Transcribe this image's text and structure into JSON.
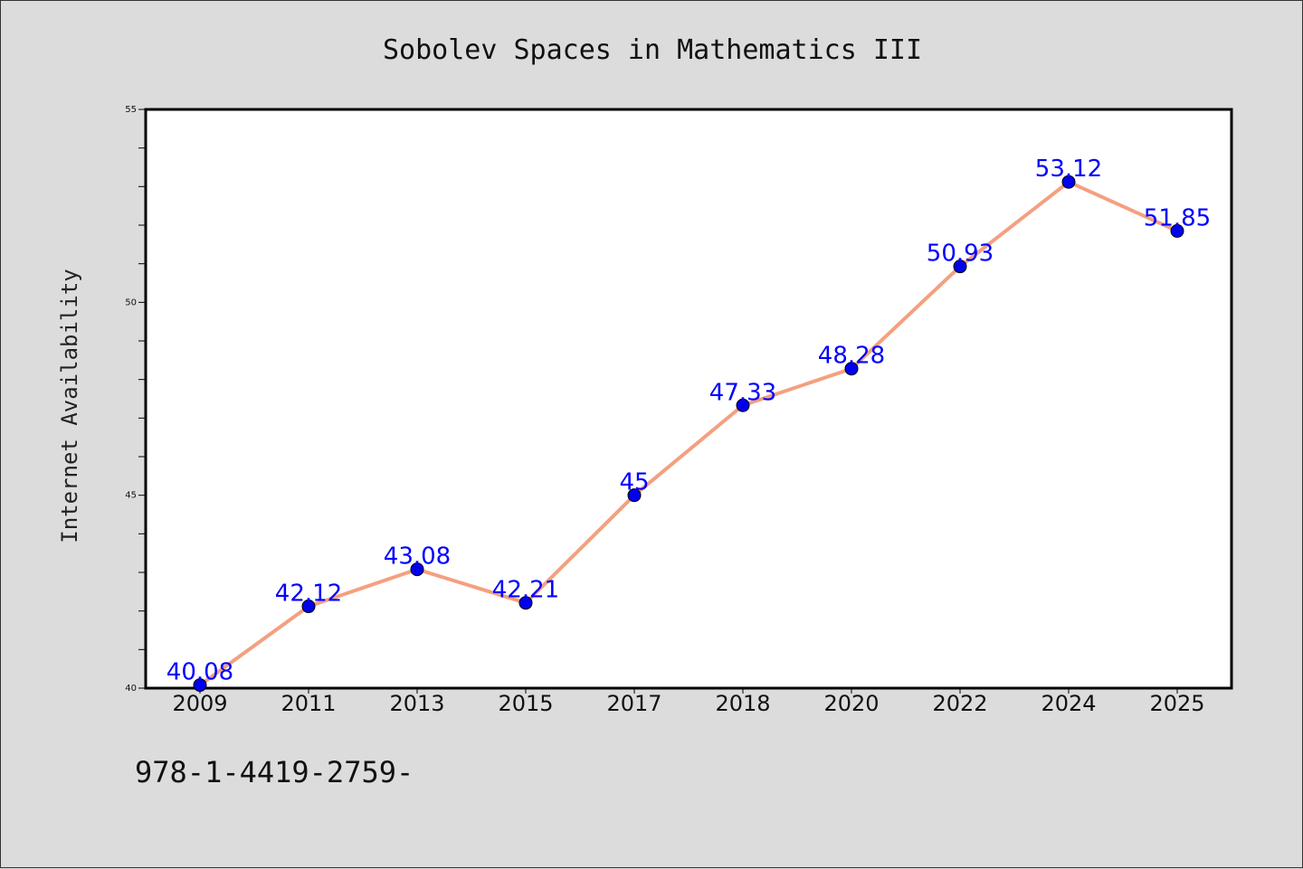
{
  "chart_data": {
    "type": "line",
    "title": "Sobolev Spaces in Mathematics III",
    "xlabel": "",
    "ylabel": "Internet Availability",
    "categories": [
      "2009",
      "2011",
      "2013",
      "2015",
      "2017",
      "2018",
      "2020",
      "2022",
      "2024",
      "2025"
    ],
    "series": [
      {
        "values": [
          40.08,
          42.12,
          43.08,
          42.21,
          45,
          47.33,
          48.28,
          50.93,
          53.12,
          51.85
        ],
        "labels": [
          "40.08",
          "42.12",
          "43.08",
          "42.21",
          "45",
          "47.33",
          "48.28",
          "50.93",
          "53.12",
          "51.85"
        ],
        "line_color": "#f4a080",
        "marker_color": "#0000ee"
      }
    ],
    "ylim": [
      40,
      55
    ],
    "yticks": [
      "40",
      "45",
      "50",
      "55"
    ],
    "grid": false,
    "legend": "none"
  },
  "footer_text": "978-1-4419-2759-"
}
